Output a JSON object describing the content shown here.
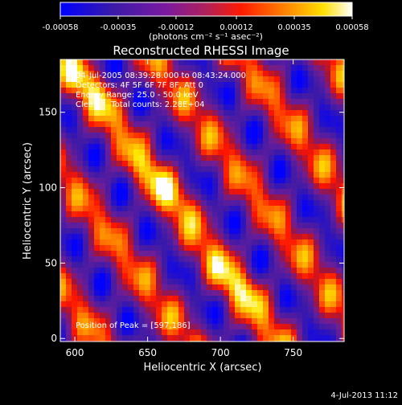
{
  "chart_data": {
    "type": "heatmap",
    "title": "Reconstructed RHESSI Image",
    "xlabel": "Heliocentric X (arcsec)",
    "ylabel": "Heliocentric Y (arcsec)",
    "xlim": [
      590,
      785
    ],
    "ylim": [
      -2,
      185
    ],
    "x_ticks": [
      "600",
      "650",
      "700",
      "750"
    ],
    "x_tick_values": [
      600,
      650,
      700,
      750
    ],
    "y_ticks": [
      "0",
      "50",
      "100",
      "150"
    ],
    "y_tick_values": [
      0,
      50,
      100,
      150
    ],
    "colorbar": {
      "ticks": [
        "-0.00058",
        "-0.00035",
        "-0.00012",
        "0.00012",
        "0.00035",
        "0.00058"
      ],
      "tick_values": [
        -0.00058,
        -0.00035,
        -0.00012,
        0.00012,
        0.00035,
        0.00058
      ],
      "range": [
        -0.00058,
        0.00058
      ],
      "unit_label": "(photons cm⁻² s⁻¹ asec⁻²)",
      "colormap": [
        "#0000ff",
        "#4b0082",
        "#a020f0",
        "#ff0000",
        "#ff8c00",
        "#ffff00",
        "#ffffff"
      ]
    },
    "annotations": {
      "date_range": "04-Jul-2005 08:39:28.000 to 08:43:24.000",
      "detectors": "Detectors: 4F 5F 6F 7F 8F, Att 0",
      "energy_range": "Energy Range: 25.0 - 50.0 keV",
      "method_counts": "Clean     Total counts: 2.28E+04",
      "peak": "Position of Peak = [597,186]"
    },
    "footer_timestamp": "4-Jul-2013 11:12",
    "peak_position": [
      597,
      186
    ],
    "grid": false
  }
}
